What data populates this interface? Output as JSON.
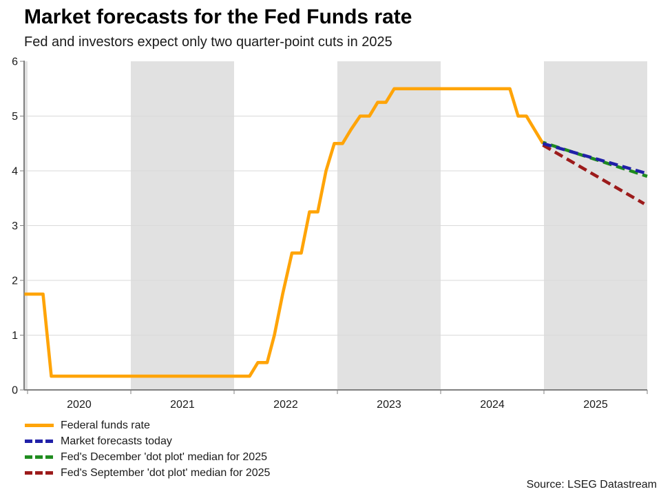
{
  "chart_data": {
    "type": "line",
    "title": "Market forecasts for the Fed Funds rate",
    "subtitle": "Fed and investors expect only two quarter-point cuts in 2025",
    "source": "Source: LSEG Datastream",
    "xlabel": "",
    "ylabel": "",
    "xlim": [
      2019.967,
      2026.0
    ],
    "ylim": [
      0,
      6
    ],
    "yticks": [
      0,
      1,
      2,
      3,
      4,
      5,
      6
    ],
    "xtick_years": [
      "2020",
      "2021",
      "2022",
      "2023",
      "2024",
      "2025"
    ],
    "grid": "horizontal",
    "legend_position": "bottom-left",
    "shaded_years": [
      2019,
      2021,
      2023,
      2025
    ],
    "colors": {
      "band": "#e1e1e1",
      "gridline": "#d9d9d9",
      "axis": "#7f7f7f",
      "text": "#1a1a1a",
      "orange": "#ffa408",
      "navy": "#2020a8",
      "green": "#1f8c1f",
      "dark_red": "#9c1b1b"
    },
    "series": [
      {
        "name": "Federal funds rate",
        "color": "#ffa408",
        "style": "solid",
        "points": [
          [
            2019.97,
            1.75
          ],
          [
            2020.15,
            1.75
          ],
          [
            2020.23,
            0.25
          ],
          [
            2022.15,
            0.25
          ],
          [
            2022.23,
            0.5
          ],
          [
            2022.32,
            0.5
          ],
          [
            2022.39,
            1.0
          ],
          [
            2022.47,
            1.75
          ],
          [
            2022.56,
            2.5
          ],
          [
            2022.65,
            2.5
          ],
          [
            2022.73,
            3.25
          ],
          [
            2022.81,
            3.25
          ],
          [
            2022.89,
            4.0
          ],
          [
            2022.97,
            4.5
          ],
          [
            2023.05,
            4.5
          ],
          [
            2023.13,
            4.75
          ],
          [
            2023.22,
            5.0
          ],
          [
            2023.31,
            5.0
          ],
          [
            2023.39,
            5.25
          ],
          [
            2023.47,
            5.25
          ],
          [
            2023.55,
            5.5
          ],
          [
            2024.67,
            5.5
          ],
          [
            2024.75,
            5.0
          ],
          [
            2024.83,
            5.0
          ],
          [
            2024.91,
            4.75
          ],
          [
            2024.99,
            4.5
          ]
        ]
      },
      {
        "name": "Market forecasts today",
        "color": "#2020a8",
        "style": "dashed",
        "points": [
          [
            2024.99,
            4.5
          ],
          [
            2026.0,
            3.95
          ]
        ]
      },
      {
        "name": "Fed's December 'dot plot' median for 2025",
        "color": "#1f8c1f",
        "style": "dashed",
        "points": [
          [
            2024.99,
            4.52
          ],
          [
            2026.0,
            3.9
          ]
        ]
      },
      {
        "name": "Fed's September 'dot plot' median for 2025",
        "color": "#9c1b1b",
        "style": "dashed",
        "points": [
          [
            2024.99,
            4.47
          ],
          [
            2025.97,
            3.4
          ]
        ]
      }
    ]
  }
}
